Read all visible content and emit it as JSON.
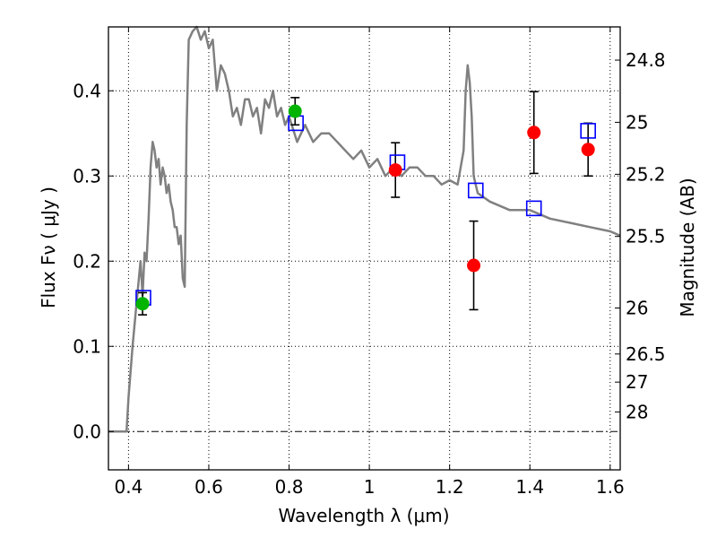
{
  "chart_data": {
    "type": "scatter",
    "xlabel": "Wavelength  λ (μm)",
    "ylabel": "Flux  Fν  ( μJy )",
    "ylabel_right": "Magnitude (AB)",
    "xlim": [
      0.35,
      1.625
    ],
    "ylim": [
      -0.045,
      0.475
    ],
    "grid": true,
    "x_ticks": [
      0.4,
      0.6,
      0.8,
      1.0,
      1.2,
      1.4,
      1.6
    ],
    "x_tick_labels": [
      "0.4",
      "0.6",
      "0.8",
      "1",
      "1.2",
      "1.4",
      "1.6"
    ],
    "y_ticks": [
      0.0,
      0.1,
      0.2,
      0.3,
      0.4
    ],
    "y_tick_labels": [
      "0.0",
      "0.1",
      "0.2",
      "0.3",
      "0.4"
    ],
    "right_ticks": [
      {
        "label": "24.8",
        "flux": 0.436
      },
      {
        "label": "25",
        "flux": 0.363
      },
      {
        "label": "25.2",
        "flux": 0.302
      },
      {
        "label": "25.5",
        "flux": 0.229
      },
      {
        "label": "26",
        "flux": 0.145
      },
      {
        "label": "26.5",
        "flux": 0.091
      },
      {
        "label": "27",
        "flux": 0.058
      },
      {
        "label": "28",
        "flux": 0.023
      }
    ],
    "colors": {
      "model": "#808080",
      "green_points": "#00b400",
      "red_points": "#ff0000",
      "squares": "#0000ff",
      "errorbars": "#000000",
      "zero_line": "#000000"
    },
    "series": [
      {
        "type": "line",
        "x": [
          0.35,
          0.39,
          0.395,
          0.4,
          0.41,
          0.42,
          0.43,
          0.435,
          0.44,
          0.445,
          0.45,
          0.455,
          0.46,
          0.465,
          0.47,
          0.475,
          0.48,
          0.485,
          0.49,
          0.495,
          0.5,
          0.505,
          0.51,
          0.515,
          0.52,
          0.525,
          0.53,
          0.535,
          0.54,
          0.545,
          0.55,
          0.56,
          0.57,
          0.58,
          0.59,
          0.6,
          0.61,
          0.62,
          0.63,
          0.64,
          0.645,
          0.65,
          0.66,
          0.67,
          0.68,
          0.69,
          0.7,
          0.71,
          0.72,
          0.73,
          0.74,
          0.75,
          0.76,
          0.77,
          0.78,
          0.79,
          0.8,
          0.82,
          0.84,
          0.86,
          0.88,
          0.9,
          0.92,
          0.94,
          0.96,
          0.98,
          1.0,
          1.02,
          1.04,
          1.06,
          1.08,
          1.1,
          1.12,
          1.14,
          1.16,
          1.18,
          1.2,
          1.22,
          1.235,
          1.24,
          1.245,
          1.25,
          1.255,
          1.26,
          1.27,
          1.3,
          1.35,
          1.4,
          1.45,
          1.5,
          1.55,
          1.6,
          1.625
        ],
        "y": [
          0.0,
          0.0,
          0.0,
          0.04,
          0.1,
          0.15,
          0.2,
          0.16,
          0.21,
          0.2,
          0.25,
          0.31,
          0.34,
          0.33,
          0.31,
          0.32,
          0.29,
          0.31,
          0.3,
          0.28,
          0.29,
          0.27,
          0.26,
          0.24,
          0.24,
          0.22,
          0.23,
          0.18,
          0.17,
          0.36,
          0.46,
          0.47,
          0.48,
          0.46,
          0.47,
          0.45,
          0.46,
          0.4,
          0.43,
          0.42,
          0.41,
          0.4,
          0.37,
          0.38,
          0.36,
          0.39,
          0.39,
          0.37,
          0.38,
          0.35,
          0.39,
          0.38,
          0.4,
          0.37,
          0.38,
          0.36,
          0.37,
          0.34,
          0.36,
          0.34,
          0.35,
          0.35,
          0.34,
          0.33,
          0.32,
          0.33,
          0.31,
          0.32,
          0.3,
          0.31,
          0.3,
          0.31,
          0.31,
          0.3,
          0.3,
          0.29,
          0.295,
          0.29,
          0.33,
          0.4,
          0.43,
          0.41,
          0.37,
          0.3,
          0.28,
          0.27,
          0.26,
          0.26,
          0.25,
          0.245,
          0.24,
          0.235,
          0.23
        ]
      },
      {
        "type": "scatter",
        "marker": "circle",
        "color": "green",
        "points": [
          {
            "x": 0.435,
            "y": 0.15,
            "err": 0.013
          },
          {
            "x": 0.815,
            "y": 0.376,
            "err": 0.016
          }
        ]
      },
      {
        "type": "scatter",
        "marker": "circle",
        "color": "red",
        "points": [
          {
            "x": 1.065,
            "y": 0.307,
            "err": 0.032
          },
          {
            "x": 1.26,
            "y": 0.195,
            "err": 0.052
          },
          {
            "x": 1.41,
            "y": 0.351,
            "err": 0.048
          },
          {
            "x": 1.545,
            "y": 0.331,
            "err": 0.031
          }
        ]
      },
      {
        "type": "scatter",
        "marker": "open-square",
        "color": "blue",
        "points": [
          {
            "x": 0.437,
            "y": 0.157
          },
          {
            "x": 0.817,
            "y": 0.362
          },
          {
            "x": 1.07,
            "y": 0.316
          },
          {
            "x": 1.265,
            "y": 0.283
          },
          {
            "x": 1.41,
            "y": 0.262
          },
          {
            "x": 1.545,
            "y": 0.353
          }
        ]
      }
    ]
  }
}
